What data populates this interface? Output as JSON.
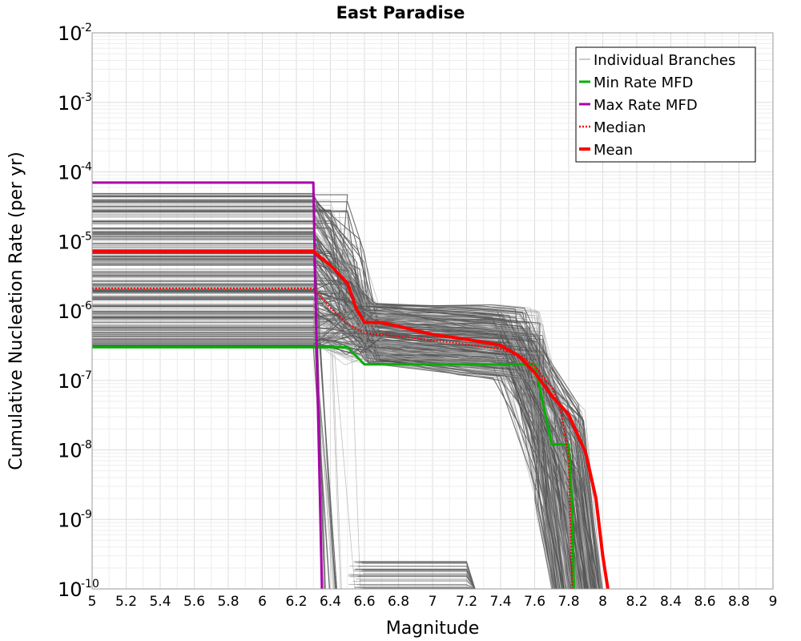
{
  "chart_data": {
    "type": "line",
    "title": "East Paradise",
    "xlabel": "Magnitude",
    "ylabel": "Cumulative Nucleation Rate (per yr)",
    "xlim": [
      5,
      9
    ],
    "ylim": [
      1e-10,
      0.01
    ],
    "yscale": "log",
    "grid": true,
    "legend_position": "top-right",
    "x_ticks": [
      "5",
      "5.2",
      "5.4",
      "5.6",
      "5.8",
      "6",
      "6.2",
      "6.4",
      "6.6",
      "6.8",
      "7",
      "7.2",
      "7.4",
      "7.6",
      "7.8",
      "8",
      "8.2",
      "8.4",
      "8.6",
      "8.8",
      "9"
    ],
    "y_ticks": [
      {
        "base": "10",
        "exp": "-2"
      },
      {
        "base": "10",
        "exp": "-3"
      },
      {
        "base": "10",
        "exp": "-4"
      },
      {
        "base": "10",
        "exp": "-5"
      },
      {
        "base": "10",
        "exp": "-6"
      },
      {
        "base": "10",
        "exp": "-7"
      },
      {
        "base": "10",
        "exp": "-8"
      },
      {
        "base": "10",
        "exp": "-9"
      },
      {
        "base": "10",
        "exp": "-10"
      }
    ],
    "legend": [
      {
        "label": "Individual Branches",
        "color": "#9a9a9a",
        "style": "thin"
      },
      {
        "label": "Min Rate MFD",
        "color": "#00b000",
        "style": "solid"
      },
      {
        "label": "Max Rate MFD",
        "color": "#aa00aa",
        "style": "solid"
      },
      {
        "label": "Median",
        "color": "#ff0000",
        "style": "dotted"
      },
      {
        "label": "Mean",
        "color": "#ff0000",
        "style": "thick"
      }
    ],
    "series": [
      {
        "name": "Min Rate MFD",
        "color": "#00b000",
        "x": [
          5.0,
          6.3,
          6.35,
          6.5,
          6.6,
          7.0,
          7.4,
          7.6,
          7.7,
          7.8,
          7.82,
          7.83
        ],
        "y": [
          3e-07,
          3e-07,
          3e-07,
          3e-07,
          1.7e-07,
          1.7e-07,
          1.7e-07,
          1.7e-07,
          1.2e-08,
          1.2e-08,
          1.5e-09,
          1e-10
        ]
      },
      {
        "name": "Max Rate MFD",
        "color": "#aa00aa",
        "x": [
          5.0,
          6.3,
          6.31,
          6.35
        ],
        "y": [
          7e-05,
          7e-05,
          3e-06,
          1e-10
        ]
      },
      {
        "name": "Median",
        "color": "#ff0000",
        "x": [
          5.0,
          6.3,
          6.4,
          6.5,
          6.6,
          6.8,
          7.0,
          7.2,
          7.4,
          7.5,
          7.6,
          7.7,
          7.75,
          7.8,
          7.82
        ],
        "y": [
          2.1e-06,
          2.1e-06,
          1.1e-06,
          6.5e-07,
          4.8e-07,
          4.3e-07,
          3.8e-07,
          3.3e-07,
          2.8e-07,
          2.4e-07,
          1.6e-07,
          8e-08,
          4e-08,
          8e-09,
          1e-10
        ]
      },
      {
        "name": "Mean",
        "color": "#ff0000",
        "x": [
          5.0,
          6.3,
          6.4,
          6.5,
          6.55,
          6.6,
          6.7,
          6.8,
          6.9,
          7.0,
          7.2,
          7.4,
          7.5,
          7.6,
          7.7,
          7.8,
          7.9,
          7.96,
          8.0,
          8.03
        ],
        "y": [
          7.2e-06,
          7.2e-06,
          4.5e-06,
          2.5e-06,
          1.1e-06,
          6.8e-07,
          6.8e-07,
          6e-07,
          5.2e-07,
          4.6e-07,
          3.9e-07,
          3.2e-07,
          2.3e-07,
          1.3e-07,
          6e-08,
          3.2e-08,
          9e-09,
          2e-09,
          3e-10,
          1e-10
        ]
      }
    ]
  }
}
